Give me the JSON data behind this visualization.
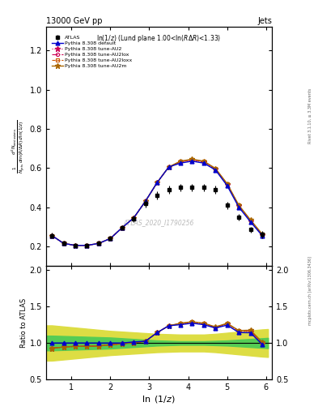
{
  "title_left": "13000 GeV pp",
  "title_right": "Jets",
  "panel_title": "ln(1/z) (Lund plane 1.00<ln(RΔ R)<1.33)",
  "xlabel": "ln (1/z)",
  "ylabel_ratio": "Ratio to ATLAS",
  "watermark": "ATLAS_2020_I1790256",
  "atlas_x": [
    0.5,
    0.8,
    1.1,
    1.4,
    1.7,
    2.0,
    2.3,
    2.6,
    2.9,
    3.2,
    3.5,
    3.8,
    4.1,
    4.4,
    4.7,
    5.0,
    5.3,
    5.6,
    5.9
  ],
  "atlas_y": [
    0.255,
    0.215,
    0.205,
    0.205,
    0.215,
    0.24,
    0.295,
    0.34,
    0.42,
    0.46,
    0.49,
    0.5,
    0.5,
    0.5,
    0.49,
    0.41,
    0.35,
    0.285,
    0.26
  ],
  "atlas_yerr_lo": [
    0.015,
    0.01,
    0.01,
    0.01,
    0.01,
    0.01,
    0.012,
    0.015,
    0.02,
    0.02,
    0.02,
    0.02,
    0.02,
    0.02,
    0.02,
    0.018,
    0.016,
    0.015,
    0.02
  ],
  "atlas_yerr_hi": [
    0.015,
    0.01,
    0.01,
    0.01,
    0.01,
    0.01,
    0.012,
    0.015,
    0.02,
    0.02,
    0.02,
    0.02,
    0.02,
    0.02,
    0.02,
    0.018,
    0.016,
    0.015,
    0.02
  ],
  "mc_x": [
    0.5,
    0.8,
    1.1,
    1.4,
    1.7,
    2.0,
    2.3,
    2.6,
    2.9,
    3.2,
    3.5,
    3.8,
    4.1,
    4.4,
    4.7,
    5.0,
    5.3,
    5.6,
    5.9
  ],
  "pythia_default_y": [
    0.255,
    0.215,
    0.205,
    0.205,
    0.215,
    0.24,
    0.295,
    0.345,
    0.43,
    0.525,
    0.605,
    0.625,
    0.635,
    0.625,
    0.59,
    0.51,
    0.4,
    0.325,
    0.255
  ],
  "pythia_au2_y": [
    0.255,
    0.215,
    0.205,
    0.205,
    0.215,
    0.24,
    0.295,
    0.345,
    0.43,
    0.525,
    0.605,
    0.63,
    0.64,
    0.63,
    0.593,
    0.515,
    0.405,
    0.33,
    0.258
  ],
  "pythia_au2lox_y": [
    0.255,
    0.215,
    0.205,
    0.205,
    0.215,
    0.24,
    0.295,
    0.345,
    0.43,
    0.525,
    0.605,
    0.632,
    0.642,
    0.632,
    0.595,
    0.518,
    0.408,
    0.332,
    0.26
  ],
  "pythia_au2loxx_y": [
    0.255,
    0.215,
    0.205,
    0.205,
    0.215,
    0.24,
    0.295,
    0.345,
    0.43,
    0.525,
    0.605,
    0.633,
    0.643,
    0.633,
    0.596,
    0.519,
    0.409,
    0.333,
    0.261
  ],
  "pythia_au2m_y": [
    0.255,
    0.215,
    0.205,
    0.205,
    0.215,
    0.24,
    0.295,
    0.345,
    0.43,
    0.525,
    0.605,
    0.635,
    0.645,
    0.635,
    0.598,
    0.52,
    0.41,
    0.335,
    0.263
  ],
  "ratio_default_y": [
    1.0,
    1.0,
    1.0,
    1.0,
    1.0,
    1.0,
    1.0,
    1.015,
    1.024,
    1.141,
    1.235,
    1.25,
    1.27,
    1.25,
    1.204,
    1.244,
    1.143,
    1.14,
    0.981
  ],
  "ratio_au2_y": [
    0.93,
    0.945,
    0.955,
    0.955,
    0.96,
    0.975,
    0.99,
    1.005,
    1.024,
    1.141,
    1.235,
    1.26,
    1.28,
    1.26,
    1.21,
    1.256,
    1.157,
    1.158,
    0.992
  ],
  "ratio_au2lox_y": [
    0.93,
    0.945,
    0.955,
    0.955,
    0.96,
    0.975,
    0.99,
    1.005,
    1.024,
    1.141,
    1.235,
    1.264,
    1.284,
    1.264,
    1.214,
    1.263,
    1.166,
    1.167,
    1.0
  ],
  "ratio_au2loxx_y": [
    0.93,
    0.945,
    0.955,
    0.955,
    0.96,
    0.975,
    0.99,
    1.005,
    1.024,
    1.141,
    1.235,
    1.266,
    1.286,
    1.266,
    1.216,
    1.265,
    1.168,
    1.17,
    1.004
  ],
  "ratio_au2m_y": [
    0.93,
    0.945,
    0.955,
    0.955,
    0.96,
    0.975,
    0.99,
    1.005,
    1.024,
    1.141,
    1.235,
    1.27,
    1.29,
    1.27,
    1.22,
    1.268,
    1.17,
    1.175,
    1.012
  ],
  "band_x": [
    0.35,
    0.5,
    0.8,
    1.1,
    1.4,
    1.7,
    2.0,
    2.3,
    2.6,
    2.9,
    3.2,
    3.5,
    3.8,
    4.1,
    4.4,
    4.7,
    5.0,
    5.3,
    5.6,
    5.9,
    6.05
  ],
  "band_green_lo": [
    0.9,
    0.9,
    0.905,
    0.91,
    0.915,
    0.92,
    0.925,
    0.935,
    0.945,
    0.955,
    0.965,
    0.97,
    0.975,
    0.975,
    0.975,
    0.97,
    0.965,
    0.955,
    0.945,
    0.935,
    0.93
  ],
  "band_green_hi": [
    1.1,
    1.1,
    1.095,
    1.09,
    1.085,
    1.08,
    1.075,
    1.065,
    1.055,
    1.045,
    1.035,
    1.03,
    1.025,
    1.025,
    1.025,
    1.03,
    1.035,
    1.045,
    1.055,
    1.065,
    1.07
  ],
  "band_yellow_lo": [
    0.76,
    0.76,
    0.775,
    0.79,
    0.805,
    0.82,
    0.835,
    0.845,
    0.855,
    0.865,
    0.875,
    0.88,
    0.885,
    0.885,
    0.885,
    0.875,
    0.86,
    0.845,
    0.83,
    0.815,
    0.81
  ],
  "band_yellow_hi": [
    1.24,
    1.24,
    1.225,
    1.21,
    1.195,
    1.18,
    1.165,
    1.155,
    1.145,
    1.135,
    1.125,
    1.12,
    1.115,
    1.115,
    1.115,
    1.125,
    1.14,
    1.155,
    1.17,
    1.185,
    1.19
  ],
  "color_default": "#0000cc",
  "color_au2": "#cc0055",
  "color_au2lox": "#cc0055",
  "color_au2loxx": "#cc5500",
  "color_au2m": "#aa6600",
  "color_band_green": "#55cc55",
  "color_band_yellow": "#dddd44",
  "xlim": [
    0.35,
    6.15
  ],
  "ylim_main": [
    0.1,
    1.32
  ],
  "ylim_ratio": [
    0.5,
    2.05
  ],
  "yticks_main": [
    0.2,
    0.4,
    0.6,
    0.8,
    1.0,
    1.2
  ],
  "yticks_ratio": [
    0.5,
    1.0,
    1.5,
    2.0
  ],
  "xticks": [
    1,
    2,
    3,
    4,
    5,
    6
  ]
}
